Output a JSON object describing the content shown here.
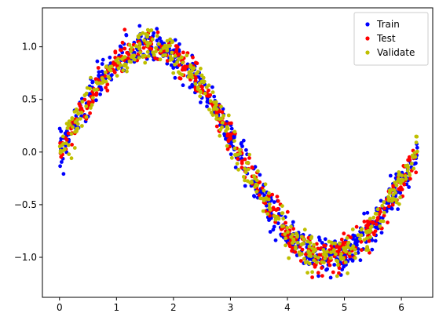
{
  "chart_data": {
    "type": "scatter",
    "xlim": [
      -0.3,
      6.55
    ],
    "ylim": [
      -1.38,
      1.37
    ],
    "x_ticks": [
      0,
      1,
      2,
      3,
      4,
      5,
      6
    ],
    "y_ticks": [
      -1.0,
      -0.5,
      0.0,
      0.5,
      1.0
    ],
    "x_tick_labels": [
      "0",
      "1",
      "2",
      "3",
      "4",
      "5",
      "6"
    ],
    "y_tick_labels": [
      "−1.0",
      "−0.5",
      "0.0",
      "0.5",
      "1.0"
    ],
    "grid": false,
    "legend_position": "upper-right",
    "series": [
      {
        "name": "Train",
        "color": "#0000ff",
        "count": 700,
        "noise": 0.08,
        "x_range": [
          0.0,
          6.283
        ],
        "function": "sin"
      },
      {
        "name": "Test",
        "color": "#ff0000",
        "count": 450,
        "noise": 0.08,
        "x_range": [
          0.0,
          6.283
        ],
        "function": "sin"
      },
      {
        "name": "Validate",
        "color": "#bfbf00",
        "count": 450,
        "noise": 0.08,
        "x_range": [
          0.0,
          6.283
        ],
        "function": "sin"
      }
    ]
  }
}
